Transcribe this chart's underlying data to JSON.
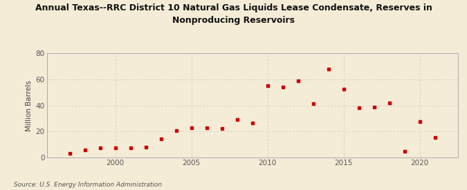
{
  "title": "Annual Texas--RRC District 10 Natural Gas Liquids Lease Condensate, Reserves in\nNonproducing Reservoirs",
  "ylabel": "Million Barrels",
  "source": "Source: U.S. Energy Information Administration",
  "background_color": "#f5ecd7",
  "marker_color": "#cc0000",
  "grid_color": "#c8c8c8",
  "years": [
    1997,
    1998,
    1999,
    2000,
    2001,
    2002,
    2003,
    2004,
    2005,
    2006,
    2007,
    2008,
    2009,
    2010,
    2011,
    2012,
    2013,
    2014,
    2015,
    2016,
    2017,
    2018,
    2019,
    2020,
    2021
  ],
  "values": [
    3.5,
    6.0,
    7.5,
    7.5,
    7.5,
    8.0,
    14.5,
    21.0,
    23.0,
    23.0,
    22.5,
    29.0,
    26.5,
    55.0,
    54.0,
    59.0,
    41.5,
    68.0,
    52.5,
    38.0,
    38.5,
    42.0,
    5.0,
    27.5,
    15.5
  ],
  "ylim": [
    0,
    80
  ],
  "yticks": [
    0,
    20,
    40,
    60,
    80
  ],
  "xlim": [
    1995.5,
    2022.5
  ],
  "xticks": [
    2000,
    2005,
    2010,
    2015,
    2020
  ]
}
